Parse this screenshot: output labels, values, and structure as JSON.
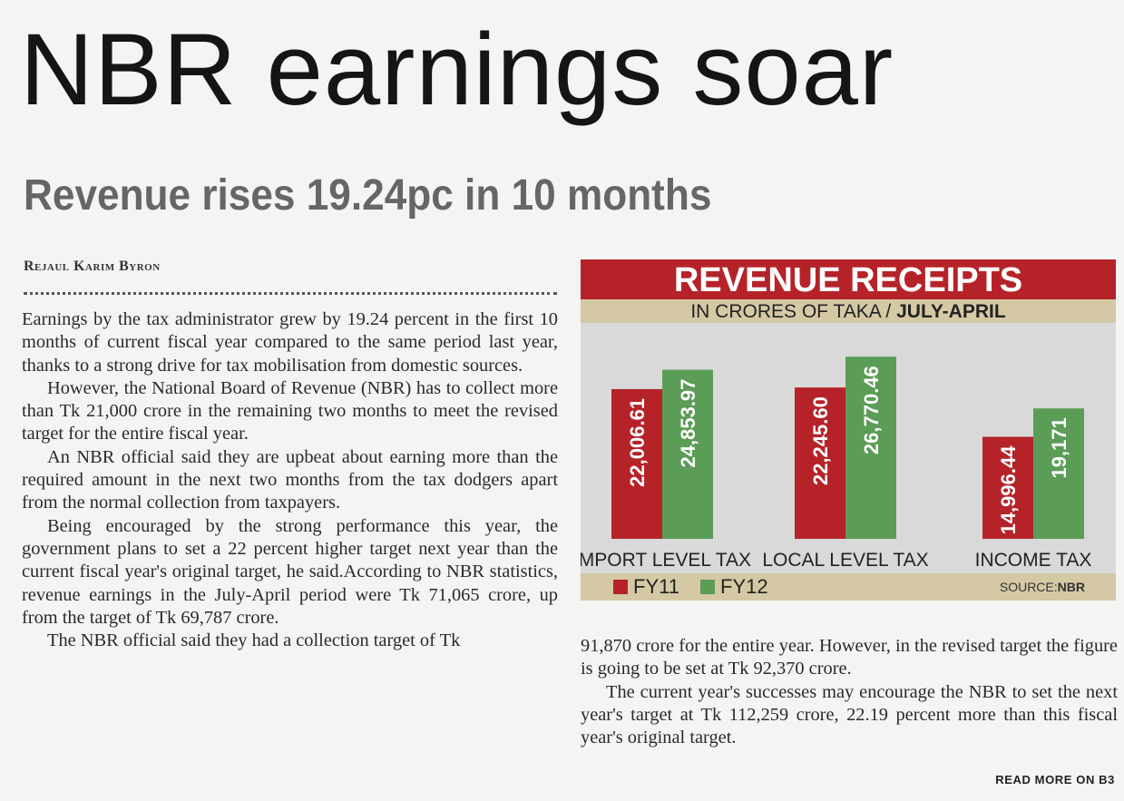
{
  "headline": "NBR earnings soar",
  "subheadline": "Revenue rises 19.24pc in 10 months",
  "byline": "Rejaul Karim Byron",
  "column1": [
    "Earnings by the tax administrator grew by 19.24 percent in the first 10 months of current fiscal year compared to the same period last year, thanks to a strong drive for tax mobilisation from domestic sources.",
    "However, the National Board of Revenue (NBR) has to collect more than Tk 21,000 crore in the remaining two months to meet the revised target for the entire fiscal year.",
    "An NBR official said they are upbeat about earning more than the required amount in the next two months from the tax dodgers apart from the normal collection from taxpayers.",
    "Being encouraged by the strong performance this year, the government plans to set a 22 percent higher target next year than the current fiscal year's original target, he said.According to NBR statistics, revenue earnings in the July-April period were Tk 71,065 crore, up from the target of Tk 69,787 crore.",
    "The NBR official said they had a collection target of Tk"
  ],
  "column2": [
    "91,870 crore for the entire year. However, in the revised target the figure is going to be set at Tk 92,370 crore.",
    "The current year's successes may encourage the NBR to set the next year's target at Tk 112,259 crore, 22.19 percent more than this fiscal year's original target."
  ],
  "read_more": "READ MORE ON B3",
  "chart_data": {
    "type": "bar",
    "title": "REVENUE RECEIPTS",
    "subtitle_prefix": "IN CRORES OF TAKA /",
    "subtitle_bold": "JULY-APRIL",
    "categories": [
      "IMPORT LEVEL TAX",
      "LOCAL LEVEL TAX",
      "INCOME TAX"
    ],
    "series": [
      {
        "name": "FY11",
        "values": [
          22006.61,
          22245.6,
          14996.44
        ],
        "labels": [
          "22,006.61",
          "22,245.60",
          "14,996.44"
        ],
        "color": "#b52329"
      },
      {
        "name": "FY12",
        "values": [
          24853.97,
          26770.46,
          19171
        ],
        "labels": [
          "24,853.97",
          "26,770.46",
          "19,171"
        ],
        "color": "#5b9c57"
      }
    ],
    "source_prefix": "SOURCE:",
    "source_name": "NBR",
    "grid": false,
    "legend": "bottom-left",
    "colors": {
      "title_bg": "#b52329",
      "band_bg": "#d5c9a5",
      "plot_bg": "#d9d9d9"
    }
  }
}
